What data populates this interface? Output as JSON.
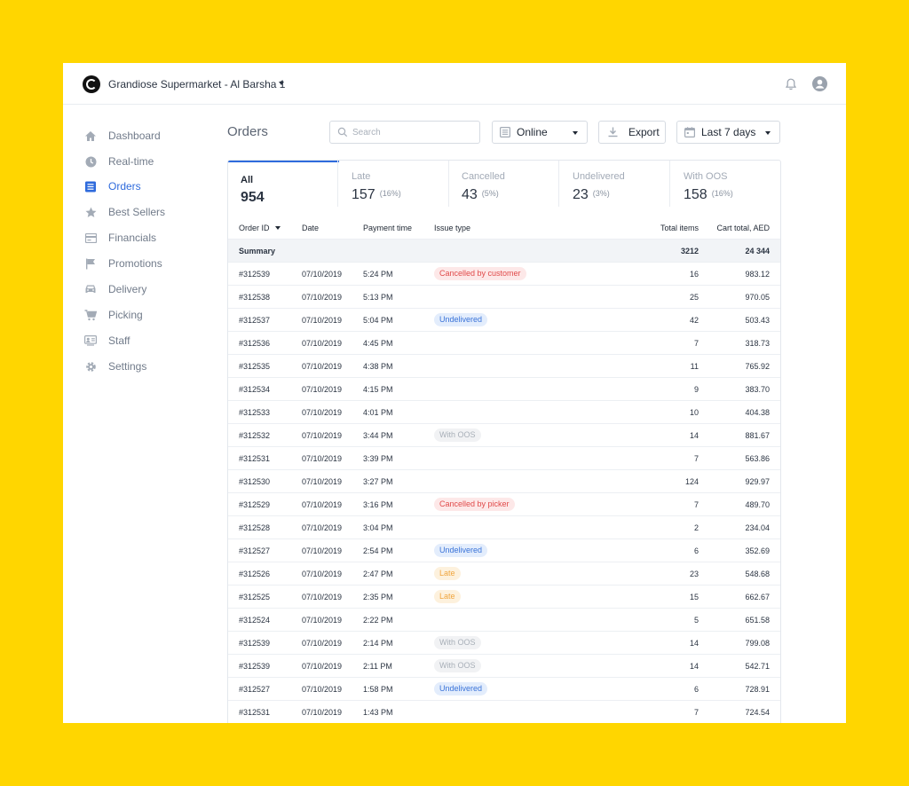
{
  "header": {
    "store_name": "Grandiose Supermarket - Al Barsha 1"
  },
  "sidebar": {
    "items": [
      {
        "label": "Dashboard",
        "icon": "home-icon"
      },
      {
        "label": "Real-time",
        "icon": "clock-icon"
      },
      {
        "label": "Orders",
        "icon": "list-icon",
        "active": true
      },
      {
        "label": "Best Sellers",
        "icon": "star-icon"
      },
      {
        "label": "Financials",
        "icon": "card-icon"
      },
      {
        "label": "Promotions",
        "icon": "flag-icon"
      },
      {
        "label": "Delivery",
        "icon": "car-icon"
      },
      {
        "label": "Picking",
        "icon": "cart-icon"
      },
      {
        "label": "Staff",
        "icon": "staff-icon"
      },
      {
        "label": "Settings",
        "icon": "gear-icon"
      }
    ]
  },
  "main": {
    "title": "Orders",
    "search_placeholder": "Search",
    "channel": "Online",
    "export_label": "Export",
    "date_range": "Last 7 days"
  },
  "tabs": [
    {
      "label": "All",
      "count": "954",
      "pct": ""
    },
    {
      "label": "Late",
      "count": "157",
      "pct": "(16%)"
    },
    {
      "label": "Cancelled",
      "count": "43",
      "pct": "(5%)"
    },
    {
      "label": "Undelivered",
      "count": "23",
      "pct": "(3%)"
    },
    {
      "label": "With OOS",
      "count": "158",
      "pct": "(16%)"
    }
  ],
  "table": {
    "headers": {
      "order_id": "Order ID",
      "date": "Date",
      "payment_time": "Payment time",
      "issue_type": "Issue type",
      "total_items": "Total items",
      "cart_total": "Cart total, AED"
    },
    "summary": {
      "label": "Summary",
      "total_items": "3212",
      "cart_total": "24 344"
    },
    "rows": [
      {
        "id": "#312539",
        "date": "07/10/2019",
        "time": "5:24 PM",
        "issue": "Cancelled by customer",
        "items": "16",
        "total": "983.12"
      },
      {
        "id": "#312538",
        "date": "07/10/2019",
        "time": "5:13 PM",
        "issue": "",
        "items": "25",
        "total": "970.05"
      },
      {
        "id": "#312537",
        "date": "07/10/2019",
        "time": "5:04 PM",
        "issue": "Undelivered",
        "items": "42",
        "total": "503.43"
      },
      {
        "id": "#312536",
        "date": "07/10/2019",
        "time": "4:45 PM",
        "issue": "",
        "items": "7",
        "total": "318.73"
      },
      {
        "id": "#312535",
        "date": "07/10/2019",
        "time": "4:38 PM",
        "issue": "",
        "items": "11",
        "total": "765.92"
      },
      {
        "id": "#312534",
        "date": "07/10/2019",
        "time": "4:15 PM",
        "issue": "",
        "items": "9",
        "total": "383.70"
      },
      {
        "id": "#312533",
        "date": "07/10/2019",
        "time": "4:01 PM",
        "issue": "",
        "items": "10",
        "total": "404.38"
      },
      {
        "id": "#312532",
        "date": "07/10/2019",
        "time": "3:44 PM",
        "issue": "With OOS",
        "items": "14",
        "total": "881.67"
      },
      {
        "id": "#312531",
        "date": "07/10/2019",
        "time": "3:39 PM",
        "issue": "",
        "items": "7",
        "total": "563.86"
      },
      {
        "id": "#312530",
        "date": "07/10/2019",
        "time": "3:27 PM",
        "issue": "",
        "items": "124",
        "total": "929.97"
      },
      {
        "id": "#312529",
        "date": "07/10/2019",
        "time": "3:16 PM",
        "issue": "Cancelled by picker",
        "items": "7",
        "total": "489.70"
      },
      {
        "id": "#312528",
        "date": "07/10/2019",
        "time": "3:04 PM",
        "issue": "",
        "items": "2",
        "total": "234.04"
      },
      {
        "id": "#312527",
        "date": "07/10/2019",
        "time": "2:54 PM",
        "issue": "Undelivered",
        "items": "6",
        "total": "352.69"
      },
      {
        "id": "#312526",
        "date": "07/10/2019",
        "time": "2:47 PM",
        "issue": "Late",
        "items": "23",
        "total": "548.68"
      },
      {
        "id": "#312525",
        "date": "07/10/2019",
        "time": "2:35 PM",
        "issue": "Late",
        "items": "15",
        "total": "662.67"
      },
      {
        "id": "#312524",
        "date": "07/10/2019",
        "time": "2:22 PM",
        "issue": "",
        "items": "5",
        "total": "651.58"
      },
      {
        "id": "#312539",
        "date": "07/10/2019",
        "time": "2:14 PM",
        "issue": "With OOS",
        "items": "14",
        "total": "799.08"
      },
      {
        "id": "#312539",
        "date": "07/10/2019",
        "time": "2:11 PM",
        "issue": "With OOS",
        "items": "14",
        "total": "542.71"
      },
      {
        "id": "#312527",
        "date": "07/10/2019",
        "time": "1:58 PM",
        "issue": "Undelivered",
        "items": "6",
        "total": "728.91"
      },
      {
        "id": "#312531",
        "date": "07/10/2019",
        "time": "1:43 PM",
        "issue": "",
        "items": "7",
        "total": "724.54"
      }
    ]
  },
  "colors": {
    "accent": "#2f6bdc",
    "background": "#FFD600"
  }
}
